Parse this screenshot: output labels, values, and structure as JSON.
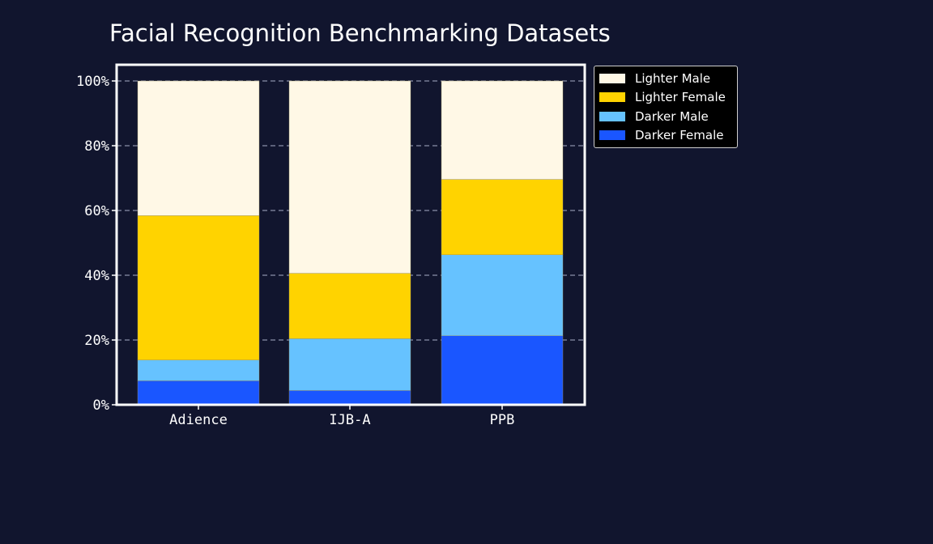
{
  "chart_data": {
    "type": "bar",
    "stacked": true,
    "title": "Facial Recognition Benchmarking Datasets",
    "xlabel": "",
    "ylabel": "",
    "categories": [
      "Adience",
      "IJB-A",
      "PPB"
    ],
    "ylim": [
      0,
      100
    ],
    "yticks": [
      "0%",
      "20%",
      "40%",
      "60%",
      "80%",
      "100%"
    ],
    "ytick_values": [
      0,
      20,
      40,
      60,
      80,
      100
    ],
    "grid": "horizontal dashed",
    "legend_position": "outside top-right",
    "series": [
      {
        "name": "Darker Female",
        "color": "#1a56ff",
        "values": [
          7.4,
          4.4,
          21.3
        ]
      },
      {
        "name": "Darker Male",
        "color": "#66c2ff",
        "values": [
          6.4,
          16.0,
          25.0
        ]
      },
      {
        "name": "Lighter Female",
        "color": "#ffd300",
        "values": [
          44.6,
          20.2,
          23.3
        ]
      },
      {
        "name": "Lighter Male",
        "color": "#fff8e6",
        "values": [
          41.6,
          59.4,
          30.4
        ]
      }
    ]
  },
  "legend": {
    "items": [
      {
        "label": "Lighter Male",
        "color": "#fff8e6"
      },
      {
        "label": "Lighter Female",
        "color": "#ffd300"
      },
      {
        "label": "Darker Male",
        "color": "#66c2ff"
      },
      {
        "label": "Darker Female",
        "color": "#1a56ff"
      }
    ]
  },
  "colors": {
    "background": "#11152e",
    "axis": "#ffffff",
    "grid": "#8a8fa8"
  }
}
